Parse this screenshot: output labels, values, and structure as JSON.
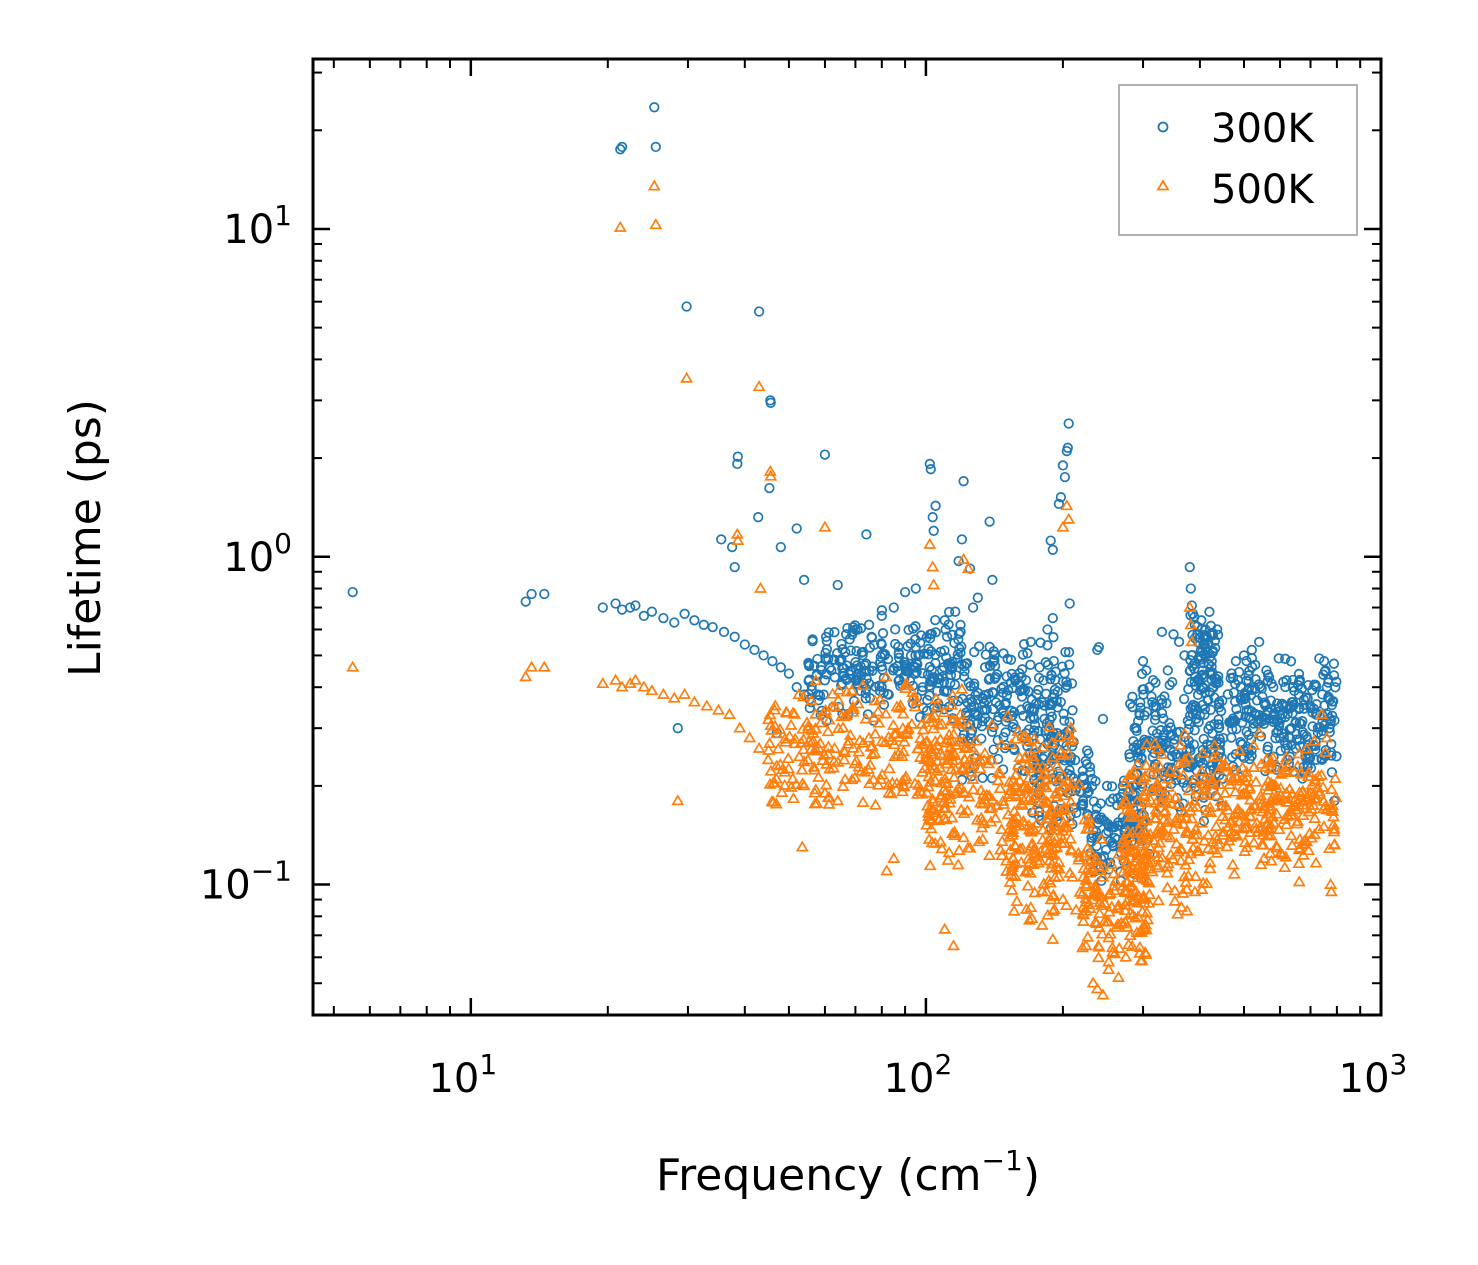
{
  "chart_data": {
    "type": "scatter",
    "title": "",
    "xlabel": "Frequency (cm",
    "xlabel_sup": "−1",
    "xlabel_suffix": ")",
    "ylabel": "Lifetime (ps)",
    "xscale": "log",
    "yscale": "log",
    "xlim": [
      4.5,
      1000
    ],
    "ylim": [
      0.04,
      33
    ],
    "x_tick_labels": [
      {
        "base": "10",
        "exp": "1",
        "value": 10
      },
      {
        "base": "10",
        "exp": "2",
        "value": 100
      },
      {
        "base": "10",
        "exp": "3",
        "value": 1000
      }
    ],
    "y_tick_labels": [
      {
        "base": "10",
        "exp": "1",
        "value": 10
      },
      {
        "base": "10",
        "exp": "0",
        "value": 1
      },
      {
        "base": "10",
        "exp": "−1",
        "value": 0.1
      }
    ],
    "legend_position": "top-right",
    "series": [
      {
        "name": "300K",
        "marker": "circle",
        "color": "#1f77b4",
        "points": [
          [
            5.5,
            0.78
          ],
          [
            13.2,
            0.73
          ],
          [
            13.6,
            0.77
          ],
          [
            14.5,
            0.77
          ],
          [
            19.5,
            0.7
          ],
          [
            20.8,
            0.72
          ],
          [
            21.5,
            0.69
          ],
          [
            22.4,
            0.7
          ],
          [
            23.0,
            0.71
          ],
          [
            24.0,
            0.66
          ],
          [
            25.0,
            0.68
          ],
          [
            26.5,
            0.65
          ],
          [
            28.0,
            0.63
          ],
          [
            29.5,
            0.67
          ],
          [
            31.0,
            0.64
          ],
          [
            32.5,
            0.62
          ],
          [
            34.0,
            0.61
          ],
          [
            36.0,
            0.59
          ],
          [
            38.0,
            0.57
          ],
          [
            40.0,
            0.54
          ],
          [
            42.0,
            0.52
          ],
          [
            44.0,
            0.5
          ],
          [
            46.0,
            0.48
          ],
          [
            48.0,
            0.46
          ],
          [
            50.0,
            0.44
          ],
          [
            52.0,
            0.4
          ],
          [
            54.0,
            0.38
          ],
          [
            56.0,
            0.36
          ],
          [
            58.0,
            0.38
          ],
          [
            60.0,
            0.42
          ],
          [
            62.0,
            0.45
          ],
          [
            21.3,
            17.5
          ],
          [
            21.5,
            17.8
          ],
          [
            25.3,
            23.5
          ],
          [
            25.5,
            17.8
          ],
          [
            29.8,
            5.8
          ],
          [
            38.5,
            1.92
          ],
          [
            38.6,
            2.02
          ],
          [
            43.0,
            5.6
          ],
          [
            45.5,
            3.0
          ],
          [
            45.6,
            2.95
          ],
          [
            45.3,
            1.62
          ],
          [
            42.8,
            1.32
          ],
          [
            35.5,
            1.13
          ],
          [
            37.5,
            1.07
          ],
          [
            38.0,
            0.93
          ],
          [
            48.0,
            1.07
          ],
          [
            52.0,
            1.22
          ],
          [
            60.0,
            2.05
          ],
          [
            64.0,
            0.82
          ],
          [
            54.0,
            0.85
          ],
          [
            68.0,
            0.56
          ],
          [
            74.0,
            1.17
          ],
          [
            90.0,
            0.78
          ],
          [
            95.0,
            0.8
          ],
          [
            102.0,
            1.92
          ],
          [
            102.5,
            1.85
          ],
          [
            103.5,
            1.32
          ],
          [
            105.0,
            1.43
          ],
          [
            104.0,
            1.2
          ],
          [
            121.0,
            1.7
          ],
          [
            120.0,
            1.13
          ],
          [
            118.0,
            0.97
          ],
          [
            125.0,
            0.92
          ],
          [
            138.0,
            1.28
          ],
          [
            188.0,
            1.12
          ],
          [
            190.0,
            1.05
          ],
          [
            196.0,
            1.45
          ],
          [
            198.0,
            1.52
          ],
          [
            200.0,
            1.9
          ],
          [
            202.0,
            1.75
          ],
          [
            204.0,
            2.1
          ],
          [
            205.0,
            2.15
          ],
          [
            206.0,
            2.55
          ],
          [
            207.0,
            0.72
          ],
          [
            190.0,
            0.65
          ],
          [
            185.0,
            0.6
          ],
          [
            170.0,
            0.55
          ],
          [
            140.0,
            0.85
          ],
          [
            130.0,
            0.75
          ],
          [
            127.0,
            0.7
          ],
          [
            116.0,
            0.68
          ],
          [
            110.0,
            0.64
          ],
          [
            80.0,
            0.66
          ],
          [
            85.0,
            0.7
          ],
          [
            75.0,
            0.62
          ],
          [
            70.0,
            0.6
          ],
          [
            238.0,
            0.52
          ],
          [
            240.0,
            0.53
          ],
          [
            245.0,
            0.32
          ],
          [
            232.0,
            0.21
          ],
          [
            250.0,
            0.2
          ],
          [
            28.5,
            0.3
          ],
          [
            47.0,
            0.29
          ],
          [
            380.0,
            0.93
          ],
          [
            382.0,
            0.8
          ],
          [
            384.0,
            0.71
          ],
          [
            386.0,
            0.67
          ],
          [
            390.0,
            0.62
          ],
          [
            395.0,
            0.58
          ],
          [
            330.0,
            0.59
          ],
          [
            350.0,
            0.58
          ],
          [
            360.0,
            0.55
          ],
          [
            370.0,
            0.5
          ],
          [
            340.0,
            0.45
          ],
          [
            300.0,
            0.48
          ],
          [
            305.0,
            0.45
          ],
          [
            310.0,
            0.4
          ],
          [
            320.0,
            0.35
          ],
          [
            290.0,
            0.3
          ],
          [
            280.0,
            0.25
          ],
          [
            480.0,
            0.48
          ],
          [
            500.0,
            0.5
          ],
          [
            520.0,
            0.52
          ],
          [
            540.0,
            0.55
          ],
          [
            560.0,
            0.45
          ],
          [
            580.0,
            0.4
          ],
          [
            620.0,
            0.42
          ],
          [
            640.0,
            0.4
          ],
          [
            660.0,
            0.38
          ],
          [
            700.0,
            0.35
          ],
          [
            720.0,
            0.33
          ],
          [
            750.0,
            0.48
          ],
          [
            755.0,
            0.45
          ],
          [
            760.0,
            0.4
          ],
          [
            770.0,
            0.3
          ],
          [
            780.0,
            0.22
          ],
          [
            790.0,
            0.18
          ],
          [
            440.0,
            0.3
          ],
          [
            450.0,
            0.28
          ],
          [
            600.0,
            0.28
          ],
          [
            650.0,
            0.26
          ],
          [
            680.0,
            0.22
          ]
        ],
        "clusters": [
          {
            "xmin": 55,
            "xmax": 120,
            "ymin": 0.3,
            "ymax": 0.7,
            "count": 260
          },
          {
            "xmin": 120,
            "xmax": 210,
            "ymin": 0.2,
            "ymax": 0.6,
            "count": 240
          },
          {
            "xmin": 170,
            "xmax": 230,
            "ymin": 0.14,
            "ymax": 0.32,
            "count": 90
          },
          {
            "xmin": 230,
            "xmax": 310,
            "ymin": 0.1,
            "ymax": 0.22,
            "count": 130
          },
          {
            "xmin": 280,
            "xmax": 450,
            "ymin": 0.15,
            "ymax": 0.45,
            "count": 220
          },
          {
            "xmin": 380,
            "xmax": 440,
            "ymin": 0.35,
            "ymax": 0.72,
            "count": 80
          },
          {
            "xmin": 460,
            "xmax": 800,
            "ymin": 0.2,
            "ymax": 0.52,
            "count": 260
          }
        ]
      },
      {
        "name": "500K",
        "marker": "triangle",
        "color": "#ff7f0e",
        "points": [
          [
            5.5,
            0.46
          ],
          [
            13.2,
            0.43
          ],
          [
            13.6,
            0.46
          ],
          [
            14.5,
            0.46
          ],
          [
            19.5,
            0.41
          ],
          [
            20.8,
            0.42
          ],
          [
            21.5,
            0.4
          ],
          [
            22.4,
            0.41
          ],
          [
            23.0,
            0.42
          ],
          [
            24.0,
            0.4
          ],
          [
            25.0,
            0.39
          ],
          [
            26.5,
            0.38
          ],
          [
            28.0,
            0.37
          ],
          [
            29.5,
            0.38
          ],
          [
            31.0,
            0.36
          ],
          [
            33.0,
            0.35
          ],
          [
            35.0,
            0.34
          ],
          [
            37.0,
            0.33
          ],
          [
            39.0,
            0.3
          ],
          [
            41.0,
            0.28
          ],
          [
            43.0,
            0.26
          ],
          [
            45.0,
            0.24
          ],
          [
            47.0,
            0.23
          ],
          [
            49.0,
            0.22
          ],
          [
            51.0,
            0.21
          ],
          [
            54.0,
            0.2
          ],
          [
            57.0,
            0.19
          ],
          [
            60.0,
            0.19
          ],
          [
            64.0,
            0.18
          ],
          [
            21.3,
            10.1
          ],
          [
            25.3,
            13.5
          ],
          [
            25.5,
            10.3
          ],
          [
            29.8,
            3.5
          ],
          [
            43.0,
            3.3
          ],
          [
            38.5,
            1.17
          ],
          [
            38.6,
            1.12
          ],
          [
            45.5,
            1.82
          ],
          [
            45.6,
            1.76
          ],
          [
            43.3,
            0.8
          ],
          [
            60.0,
            1.23
          ],
          [
            28.5,
            0.18
          ],
          [
            53.5,
            0.13
          ],
          [
            102.0,
            1.09
          ],
          [
            103.5,
            0.93
          ],
          [
            104.0,
            0.82
          ],
          [
            121.0,
            0.98
          ],
          [
            124.0,
            0.92
          ],
          [
            200.0,
            1.23
          ],
          [
            204.0,
            1.43
          ],
          [
            206.0,
            1.3
          ],
          [
            82.0,
            0.11
          ],
          [
            85.0,
            0.12
          ],
          [
            110.0,
            0.073
          ],
          [
            115.0,
            0.065
          ],
          [
            170.0,
            0.085
          ],
          [
            180.0,
            0.075
          ],
          [
            190.0,
            0.068
          ],
          [
            200.0,
            0.09
          ],
          [
            233.0,
            0.05
          ],
          [
            238.0,
            0.048
          ],
          [
            245.0,
            0.046
          ],
          [
            252.0,
            0.055
          ],
          [
            265.0,
            0.052
          ],
          [
            275.0,
            0.06
          ],
          [
            380.0,
            0.7
          ],
          [
            382.0,
            0.62
          ],
          [
            384.0,
            0.55
          ],
          [
            375.0,
            0.083
          ],
          [
            390.0,
            0.095
          ],
          [
            540.0,
            0.29
          ],
          [
            545.0,
            0.115
          ],
          [
            560.0,
            0.24
          ],
          [
            620.0,
            0.19
          ],
          [
            680.0,
            0.17
          ],
          [
            700.0,
            0.19
          ],
          [
            740.0,
            0.33
          ],
          [
            760.0,
            0.28
          ],
          [
            775.0,
            0.1
          ],
          [
            778.0,
            0.095
          ]
        ],
        "clusters": [
          {
            "xmin": 45,
            "xmax": 120,
            "ymin": 0.16,
            "ymax": 0.45,
            "count": 260
          },
          {
            "xmin": 100,
            "xmax": 210,
            "ymin": 0.1,
            "ymax": 0.35,
            "count": 260
          },
          {
            "xmin": 150,
            "xmax": 230,
            "ymin": 0.07,
            "ymax": 0.22,
            "count": 120
          },
          {
            "xmin": 220,
            "xmax": 310,
            "ymin": 0.055,
            "ymax": 0.14,
            "count": 140
          },
          {
            "xmin": 270,
            "xmax": 440,
            "ymin": 0.08,
            "ymax": 0.3,
            "count": 230
          },
          {
            "xmin": 440,
            "xmax": 800,
            "ymin": 0.1,
            "ymax": 0.28,
            "count": 240
          }
        ]
      }
    ]
  }
}
